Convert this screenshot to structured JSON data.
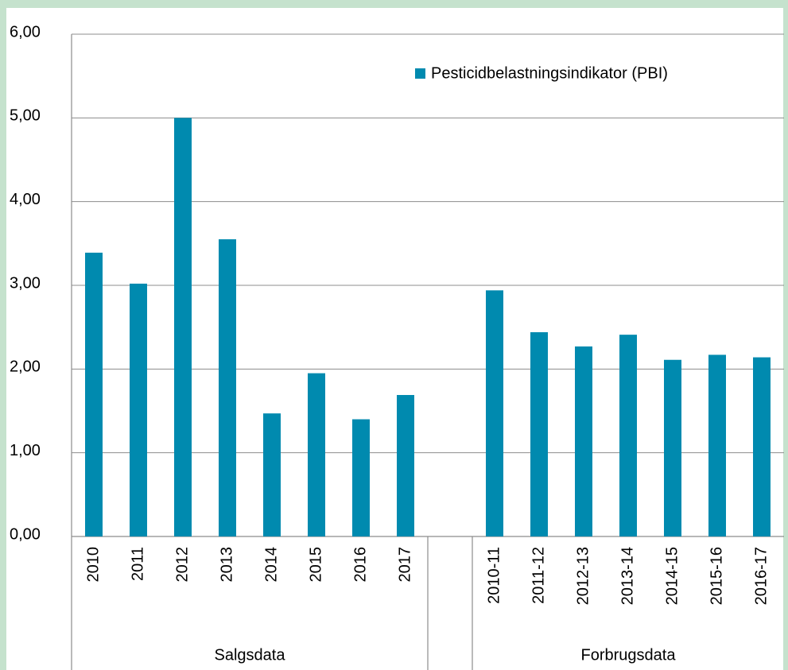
{
  "chart_data": {
    "type": "bar",
    "series_name": "Pesticidbelastningsindikator (PBI)",
    "color": "#008aaf",
    "groups": [
      {
        "name": "Salgsdata",
        "categories": [
          "2010",
          "2011",
          "2012",
          "2013",
          "2014",
          "2015",
          "2016",
          "2017"
        ],
        "values": [
          3.39,
          3.02,
          5.0,
          3.55,
          1.47,
          1.95,
          1.4,
          1.69
        ]
      },
      {
        "name": "Forbrugsdata",
        "categories": [
          "2010-11",
          "2011-12",
          "2012-13",
          "2013-14",
          "2014-15",
          "2015-16",
          "2016-17"
        ],
        "values": [
          2.94,
          2.44,
          2.27,
          2.41,
          2.11,
          2.17,
          2.14
        ]
      }
    ],
    "ylim": [
      0,
      6
    ],
    "yticks": [
      {
        "value": 0,
        "label": "0,00"
      },
      {
        "value": 1,
        "label": "1,00"
      },
      {
        "value": 2,
        "label": "2,00"
      },
      {
        "value": 3,
        "label": "3,00"
      },
      {
        "value": 4,
        "label": "4,00"
      },
      {
        "value": 5,
        "label": "5,00"
      },
      {
        "value": 6,
        "label": "6,00"
      }
    ],
    "grid": true,
    "legend": "top-right"
  }
}
